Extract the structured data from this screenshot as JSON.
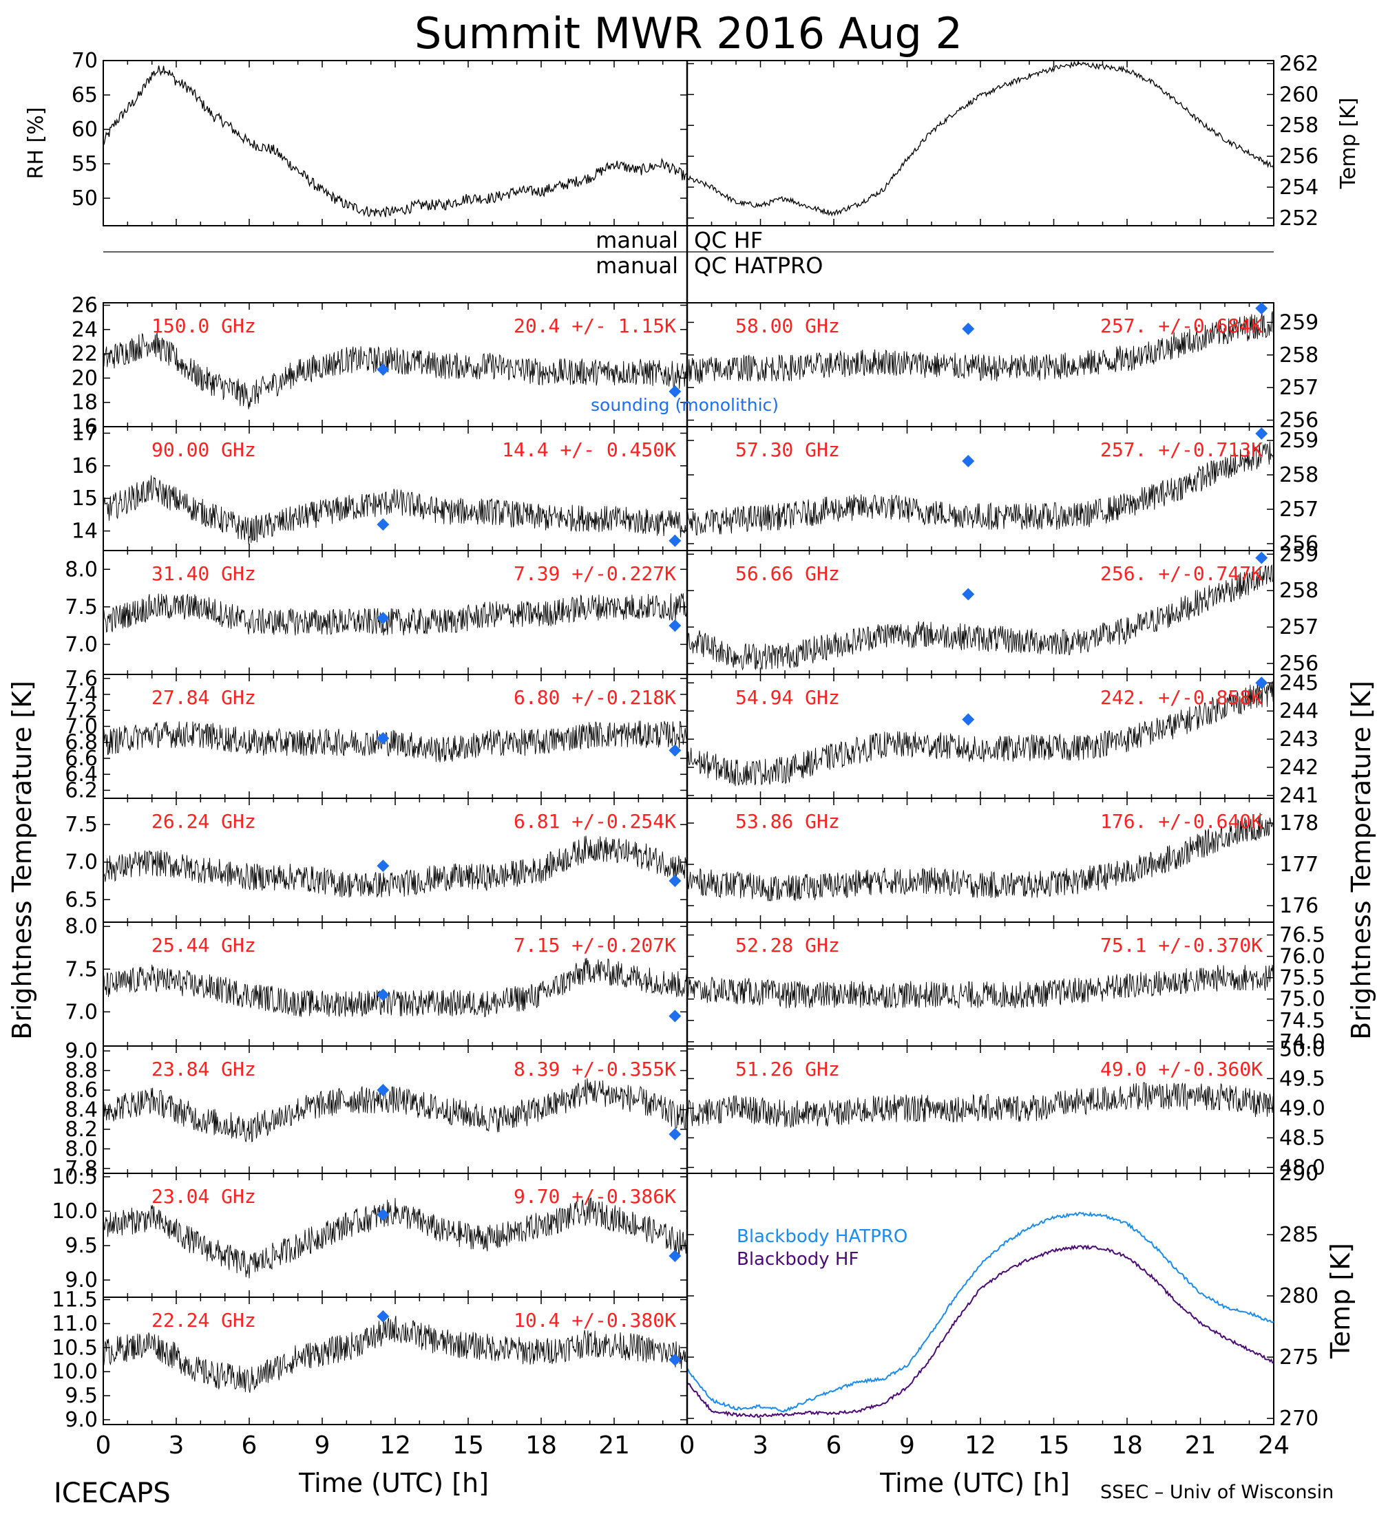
{
  "title": "Summit MWR 2016 Aug  2",
  "footer_left": "ICECAPS",
  "footer_right": "SSEC – Univ of Wisconsin",
  "colors": {
    "trace": "#000000",
    "red_label": "#ff2020",
    "sounding": "#1e6ef0",
    "hatpro": "#1a8cf0",
    "hf": "#4b0a78"
  },
  "qc": {
    "line1_left": "manual",
    "line1_right": "QC HF",
    "line2_left": "manual",
    "line2_right": "QC HATPRO"
  },
  "time_axis": {
    "label": "Time (UTC) [h]",
    "ticks": [
      "0",
      "3",
      "6",
      "9",
      "12",
      "15",
      "18",
      "21",
      "24"
    ],
    "range": [
      0,
      24
    ]
  },
  "y_axis_left_label": "Brightness Temperature [K]",
  "y_axis_right_label": "Brightness Temperature [K]",
  "sounding_note": "sounding (monolithic)",
  "chart_data": [
    {
      "type": "line",
      "id": "rh",
      "ylabel": "RH [%]",
      "xlim": [
        0,
        24
      ],
      "ylim": [
        46,
        70
      ],
      "yticks": [
        50,
        55,
        60,
        65,
        70
      ],
      "x": [
        0,
        0.5,
        1,
        1.5,
        2,
        2.5,
        3,
        3.5,
        4,
        4.5,
        5,
        6,
        7,
        8,
        9,
        10,
        11,
        12,
        13,
        14,
        15,
        16,
        17,
        18,
        19,
        20,
        21,
        22,
        23,
        24
      ],
      "values": [
        58,
        61,
        63,
        65,
        68,
        69,
        67,
        66,
        64,
        62,
        61,
        58,
        57,
        54,
        51,
        49,
        48,
        48,
        49,
        49,
        50,
        50,
        51,
        51,
        52,
        53,
        55,
        54,
        55,
        53
      ]
    },
    {
      "type": "line",
      "id": "temp",
      "ylabel": "Temp [K]",
      "xlim": [
        0,
        24
      ],
      "ylim": [
        251.5,
        262.2
      ],
      "yticks": [
        252,
        254,
        256,
        258,
        260,
        262
      ],
      "x": [
        0,
        1,
        2,
        3,
        4,
        5,
        6,
        7,
        8,
        9,
        10,
        11,
        12,
        13,
        14,
        15,
        16,
        17,
        18,
        19,
        20,
        21,
        22,
        23,
        24
      ],
      "values": [
        254.6,
        254,
        253,
        252.8,
        253.3,
        252.7,
        252.3,
        252.9,
        253.8,
        255.8,
        257.6,
        258.9,
        259.9,
        260.6,
        261.2,
        261.7,
        262.0,
        261.8,
        261.6,
        260.8,
        259.6,
        258.2,
        257.1,
        256.2,
        255.3
      ]
    },
    {
      "type": "scatter",
      "id": "ch150",
      "side": "left",
      "freq": "150.0 GHz",
      "stat": "20.4 +/-  1.15K",
      "ylim": [
        16,
        26.2
      ],
      "yticks": [
        "16",
        "18",
        "20",
        "22",
        "24",
        "26"
      ],
      "tick_vals": [
        16,
        18,
        20,
        22,
        24,
        26
      ],
      "x": [
        0,
        2,
        4,
        6,
        8,
        10,
        12,
        14,
        16,
        18,
        20,
        22,
        24
      ],
      "values": [
        21.5,
        23,
        20,
        18.5,
        20.5,
        21.5,
        21.5,
        21,
        21,
        20.5,
        20.5,
        20.5,
        20.2
      ],
      "sounding": [
        [
          11.5,
          20.7
        ],
        [
          23.5,
          18.9
        ]
      ]
    },
    {
      "type": "scatter",
      "id": "ch90",
      "side": "left",
      "freq": "90.00 GHz",
      "stat": "14.4 +/- 0.450K",
      "ylim": [
        13.4,
        17.2
      ],
      "yticks": [
        "14",
        "15",
        "16",
        "17"
      ],
      "tick_vals": [
        14,
        15,
        16,
        17
      ],
      "x": [
        0,
        2,
        4,
        6,
        8,
        10,
        12,
        14,
        16,
        18,
        20,
        22,
        24
      ],
      "values": [
        14.6,
        15.3,
        14.6,
        14,
        14.4,
        14.7,
        14.9,
        14.6,
        14.6,
        14.4,
        14.4,
        14.3,
        14.2
      ],
      "sounding": [
        [
          11.5,
          14.2
        ],
        [
          23.5,
          13.7
        ]
      ]
    },
    {
      "type": "scatter",
      "id": "ch31",
      "side": "left",
      "freq": "31.40 GHz",
      "stat": "7.39 +/-0.227K",
      "ylim": [
        6.6,
        8.25
      ],
      "yticks": [
        "7.0",
        "7.5",
        "8.0"
      ],
      "tick_vals": [
        7.0,
        7.5,
        8.0
      ],
      "x": [
        0,
        2,
        4,
        6,
        8,
        10,
        12,
        14,
        16,
        18,
        20,
        22,
        24
      ],
      "values": [
        7.3,
        7.5,
        7.5,
        7.3,
        7.3,
        7.3,
        7.3,
        7.3,
        7.4,
        7.4,
        7.5,
        7.5,
        7.5
      ],
      "sounding": [
        [
          11.5,
          7.35
        ],
        [
          23.5,
          7.25
        ]
      ]
    },
    {
      "type": "scatter",
      "id": "ch27",
      "side": "left",
      "freq": "27.84 GHz",
      "stat": "6.80 +/-0.218K",
      "ylim": [
        6.1,
        7.65
      ],
      "yticks": [
        "6.2",
        "6.4",
        "6.6",
        "6.8",
        "7.0",
        "7.2",
        "7.4",
        "7.6"
      ],
      "tick_vals": [
        6.2,
        6.4,
        6.6,
        6.8,
        7.0,
        7.2,
        7.4,
        7.6
      ],
      "x": [
        0,
        2,
        4,
        6,
        8,
        10,
        12,
        14,
        16,
        18,
        20,
        22,
        24
      ],
      "values": [
        6.8,
        6.9,
        6.9,
        6.8,
        6.8,
        6.8,
        6.8,
        6.7,
        6.8,
        6.8,
        6.9,
        6.9,
        6.9
      ],
      "sounding": [
        [
          11.5,
          6.85
        ],
        [
          23.5,
          6.7
        ]
      ]
    },
    {
      "type": "scatter",
      "id": "ch26",
      "side": "left",
      "freq": "26.24 GHz",
      "stat": "6.81 +/-0.254K",
      "ylim": [
        6.2,
        7.85
      ],
      "yticks": [
        "6.5",
        "7.0",
        "7.5"
      ],
      "tick_vals": [
        6.5,
        7.0,
        7.5
      ],
      "x": [
        0,
        2,
        4,
        6,
        8,
        10,
        12,
        14,
        16,
        18,
        20,
        22,
        24
      ],
      "values": [
        6.9,
        7.0,
        6.9,
        6.8,
        6.8,
        6.7,
        6.7,
        6.8,
        6.8,
        6.9,
        7.2,
        7.1,
        6.9
      ],
      "sounding": [
        [
          11.5,
          6.95
        ],
        [
          23.5,
          6.75
        ]
      ]
    },
    {
      "type": "scatter",
      "id": "ch25",
      "side": "left",
      "freq": "25.44 GHz",
      "stat": "7.15 +/-0.207K",
      "ylim": [
        6.6,
        8.05
      ],
      "yticks": [
        "7.0",
        "7.5",
        "8.0"
      ],
      "tick_vals": [
        7.0,
        7.5,
        8.0
      ],
      "x": [
        0,
        2,
        4,
        6,
        8,
        10,
        12,
        14,
        16,
        18,
        20,
        22,
        24
      ],
      "values": [
        7.3,
        7.4,
        7.3,
        7.2,
        7.1,
        7.1,
        7.1,
        7.1,
        7.1,
        7.2,
        7.5,
        7.4,
        7.3
      ],
      "sounding": [
        [
          11.5,
          7.2
        ],
        [
          23.5,
          6.95
        ]
      ]
    },
    {
      "type": "scatter",
      "id": "ch23_84",
      "side": "left",
      "freq": "23.84 GHz",
      "stat": "8.39 +/-0.355K",
      "ylim": [
        7.75,
        9.05
      ],
      "yticks": [
        "7.8",
        "8.0",
        "8.2",
        "8.4",
        "8.6",
        "8.8",
        "9.0"
      ],
      "tick_vals": [
        7.8,
        8.0,
        8.2,
        8.4,
        8.6,
        8.8,
        9.0
      ],
      "x": [
        0,
        2,
        4,
        6,
        8,
        10,
        12,
        14,
        16,
        18,
        20,
        22,
        24
      ],
      "values": [
        8.4,
        8.5,
        8.3,
        8.2,
        8.4,
        8.5,
        8.5,
        8.4,
        8.3,
        8.4,
        8.6,
        8.5,
        8.3
      ],
      "sounding": [
        [
          11.5,
          8.6
        ],
        [
          23.5,
          8.15
        ]
      ]
    },
    {
      "type": "scatter",
      "id": "ch23_04",
      "side": "left",
      "freq": "23.04 GHz",
      "stat": "9.70 +/-0.386K",
      "ylim": [
        8.75,
        10.55
      ],
      "yticks": [
        "9.0",
        "9.5",
        "10.0",
        "10.5"
      ],
      "tick_vals": [
        9.0,
        9.5,
        10.0,
        10.5
      ],
      "x": [
        0,
        2,
        4,
        6,
        8,
        10,
        12,
        14,
        16,
        18,
        20,
        22,
        24
      ],
      "values": [
        9.8,
        9.9,
        9.5,
        9.2,
        9.5,
        9.8,
        10.0,
        9.7,
        9.6,
        9.8,
        10.0,
        9.8,
        9.5
      ],
      "sounding": [
        [
          11.5,
          9.95
        ],
        [
          23.5,
          9.35
        ]
      ]
    },
    {
      "type": "scatter",
      "id": "ch22",
      "side": "left",
      "freq": "22.24 GHz",
      "stat": "10.4 +/-0.380K",
      "ylim": [
        8.9,
        11.55
      ],
      "yticks": [
        "9.0",
        "9.5",
        "10.0",
        "10.5",
        "11.0",
        "11.5"
      ],
      "tick_vals": [
        9.0,
        9.5,
        10.0,
        10.5,
        11.0,
        11.5
      ],
      "x": [
        0,
        2,
        4,
        6,
        8,
        10,
        12,
        14,
        16,
        18,
        20,
        22,
        24
      ],
      "values": [
        10.4,
        10.6,
        10.0,
        9.8,
        10.3,
        10.5,
        10.9,
        10.6,
        10.5,
        10.4,
        10.6,
        10.5,
        10.3
      ],
      "sounding": [
        [
          11.5,
          11.15
        ],
        [
          23.5,
          10.25
        ]
      ]
    },
    {
      "type": "scatter",
      "id": "ch58",
      "side": "right",
      "freq": "58.00 GHz",
      "stat": "257. +/-0.684K",
      "ylim": [
        255.8,
        259.6
      ],
      "yticks": [
        "256",
        "257",
        "258",
        "259"
      ],
      "tick_vals": [
        256,
        257,
        258,
        259
      ],
      "x": [
        0,
        2,
        4,
        6,
        8,
        10,
        12,
        14,
        16,
        18,
        20,
        22,
        24
      ],
      "values": [
        257.5,
        257.6,
        257.6,
        257.7,
        257.8,
        257.7,
        257.6,
        257.6,
        257.7,
        257.9,
        258.3,
        258.7,
        259.0
      ],
      "sounding": [
        [
          11.5,
          258.8
        ],
        [
          23.5,
          259.5
        ]
      ]
    },
    {
      "type": "scatter",
      "id": "ch57_30",
      "side": "right",
      "freq": "57.30 GHz",
      "stat": "257. +/-0.713K",
      "ylim": [
        255.8,
        259.4
      ],
      "yticks": [
        "256",
        "257",
        "258",
        "259"
      ],
      "tick_vals": [
        256,
        257,
        258,
        259
      ],
      "x": [
        0,
        2,
        4,
        6,
        8,
        10,
        12,
        14,
        16,
        18,
        20,
        22,
        24
      ],
      "values": [
        256.6,
        256.7,
        256.8,
        257.0,
        257.1,
        256.9,
        256.8,
        256.8,
        256.8,
        257.1,
        257.6,
        258.2,
        258.7
      ],
      "sounding": [
        [
          11.5,
          258.4
        ],
        [
          23.5,
          259.2
        ]
      ]
    },
    {
      "type": "scatter",
      "id": "ch56_66",
      "side": "right",
      "freq": "56.66 GHz",
      "stat": "256. +/-0.747K",
      "ylim": [
        255.7,
        259.1
      ],
      "yticks": [
        "256",
        "257",
        "258",
        "259"
      ],
      "tick_vals": [
        256,
        257,
        258,
        259
      ],
      "x": [
        0,
        2,
        4,
        6,
        8,
        10,
        12,
        14,
        16,
        18,
        20,
        22,
        24
      ],
      "values": [
        256.7,
        256.2,
        256.2,
        256.5,
        256.8,
        256.8,
        256.7,
        256.6,
        256.6,
        256.9,
        257.4,
        258.0,
        258.4
      ],
      "sounding": [
        [
          11.5,
          257.9
        ],
        [
          23.5,
          258.9
        ]
      ]
    },
    {
      "type": "scatter",
      "id": "ch54_94",
      "side": "right",
      "freq": "54.94 GHz",
      "stat": "242. +/-0.858K",
      "ylim": [
        240.9,
        245.3
      ],
      "yticks": [
        "241",
        "242",
        "243",
        "244",
        "245"
      ],
      "tick_vals": [
        241,
        242,
        243,
        244,
        245
      ],
      "x": [
        0,
        2,
        4,
        6,
        8,
        10,
        12,
        14,
        16,
        18,
        20,
        22,
        24
      ],
      "values": [
        242.3,
        241.8,
        241.9,
        242.4,
        242.8,
        242.8,
        242.6,
        242.7,
        242.7,
        243.0,
        243.5,
        244.2,
        244.7
      ],
      "sounding": [
        [
          11.5,
          243.7
        ],
        [
          23.5,
          245.0
        ]
      ]
    },
    {
      "type": "scatter",
      "id": "ch53_86",
      "side": "right",
      "freq": "53.86 GHz",
      "stat": "176. +/-0.640K",
      "ylim": [
        175.6,
        178.6
      ],
      "yticks": [
        "176",
        "177",
        "178"
      ],
      "tick_vals": [
        176,
        177,
        178
      ],
      "x": [
        0,
        2,
        4,
        6,
        8,
        10,
        12,
        14,
        16,
        18,
        20,
        22,
        24
      ],
      "values": [
        176.6,
        176.5,
        176.4,
        176.5,
        176.6,
        176.6,
        176.5,
        176.5,
        176.6,
        176.8,
        177.2,
        177.7,
        178.0
      ],
      "sounding": []
    },
    {
      "type": "scatter",
      "id": "ch52_28",
      "side": "right",
      "freq": "52.28 GHz",
      "stat": "75.1 +/-0.370K",
      "ylim": [
        73.9,
        76.8
      ],
      "yticks": [
        "74.0",
        "74.5",
        "75.0",
        "75.5",
        "76.0",
        "76.5"
      ],
      "tick_vals": [
        74.0,
        74.5,
        75.0,
        75.5,
        76.0,
        76.5
      ],
      "x": [
        0,
        2,
        4,
        6,
        8,
        10,
        12,
        14,
        16,
        18,
        20,
        22,
        24
      ],
      "values": [
        75.2,
        75.2,
        75.1,
        75.1,
        75.1,
        75.1,
        75.1,
        75.1,
        75.2,
        75.3,
        75.4,
        75.5,
        75.5
      ],
      "sounding": []
    },
    {
      "type": "scatter",
      "id": "ch51_26",
      "side": "right",
      "freq": "51.26 GHz",
      "stat": "49.0 +/-0.360K",
      "ylim": [
        47.9,
        50.05
      ],
      "yticks": [
        "48.0",
        "48.5",
        "49.0",
        "49.5",
        "50.0"
      ],
      "tick_vals": [
        48.0,
        48.5,
        49.0,
        49.5,
        50.0
      ],
      "x": [
        0,
        2,
        4,
        6,
        8,
        10,
        12,
        14,
        16,
        18,
        20,
        22,
        24
      ],
      "values": [
        48.9,
        49.0,
        48.9,
        48.9,
        49.0,
        49.0,
        49.0,
        49.0,
        49.1,
        49.2,
        49.2,
        49.2,
        49.0
      ],
      "sounding": []
    },
    {
      "type": "line",
      "id": "blackbody",
      "ylabel": "Temp [K]",
      "xlim": [
        0,
        24
      ],
      "ylim": [
        269.5,
        290
      ],
      "yticks": [
        "270",
        "275",
        "280",
        "285",
        "290"
      ],
      "tick_vals": [
        270,
        275,
        280,
        285,
        290
      ],
      "x": [
        0,
        1,
        2,
        3,
        4,
        5,
        6,
        7,
        8,
        9,
        10,
        11,
        12,
        13,
        14,
        15,
        16,
        17,
        18,
        19,
        20,
        21,
        22,
        23,
        24
      ],
      "series": [
        {
          "name": "Blackbody HATPRO",
          "color": "#1a8cf0",
          "values": [
            274,
            271.5,
            270.8,
            271,
            270.6,
            271.5,
            272.3,
            273.0,
            273.2,
            274.3,
            277,
            280,
            282.6,
            284.3,
            285.6,
            286.4,
            286.7,
            286.6,
            285.9,
            284.3,
            282.2,
            280.2,
            279.1,
            278.6,
            277.8
          ]
        },
        {
          "name": "Blackbody HF",
          "color": "#4b0a78",
          "values": [
            273,
            270.6,
            270.3,
            270.2,
            270.3,
            270.5,
            270.4,
            270.6,
            271.2,
            272.5,
            275,
            278,
            280.6,
            282.0,
            283.0,
            283.7,
            284.0,
            283.9,
            283.2,
            281.6,
            279.5,
            277.8,
            276.6,
            275.6,
            274.6
          ]
        }
      ]
    }
  ]
}
